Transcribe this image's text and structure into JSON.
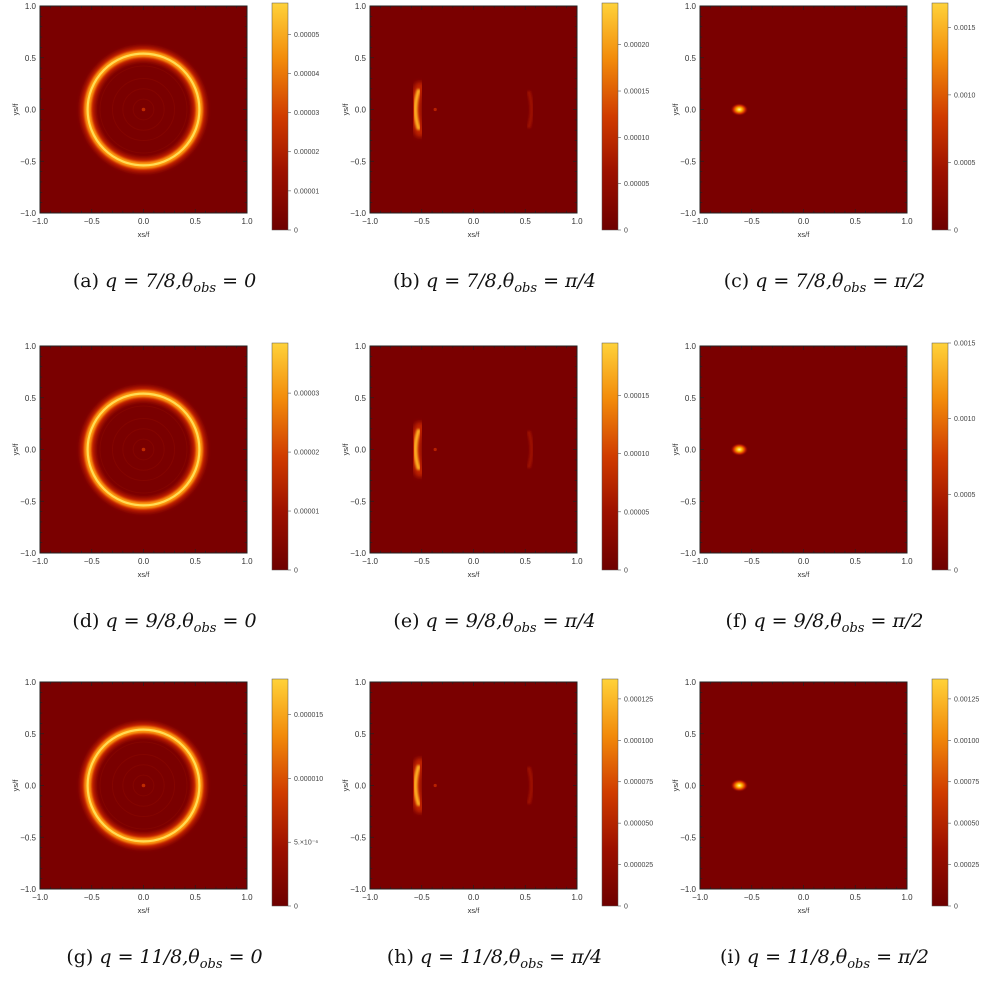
{
  "chart_data": [
    {
      "id": "a",
      "type": "heatmap",
      "caption_label": "(a)",
      "caption_math": "q = 7/8,θ",
      "caption_sub": "obs",
      "caption_rhs": " = 0",
      "pattern": "ring",
      "xlabel": "xs/f",
      "ylabel": "ys/f",
      "xlim": [
        -1,
        1
      ],
      "ylim": [
        -1,
        1
      ],
      "xticks": [
        "−1.0",
        "−0.5",
        "0.0",
        "0.5",
        "1.0"
      ],
      "yticks": [
        "1.0",
        "0.5",
        "0.0",
        "−0.5",
        "−1.0"
      ],
      "colorbar_max": 5.8e-05,
      "colorbar_ticks": [
        {
          "v": 5e-05,
          "t": "0.00005"
        },
        {
          "v": 4e-05,
          "t": "0.00004"
        },
        {
          "v": 3e-05,
          "t": "0.00003"
        },
        {
          "v": 2e-05,
          "t": "0.00002"
        },
        {
          "v": 1e-05,
          "t": "0.00001"
        },
        {
          "v": 0,
          "t": "0"
        }
      ]
    },
    {
      "id": "b",
      "type": "heatmap",
      "caption_label": "(b)",
      "caption_math": "q = 7/8,θ",
      "caption_sub": "obs",
      "caption_rhs": " = π/4",
      "pattern": "arc",
      "xlabel": "xs/f",
      "ylabel": "ys/f",
      "xlim": [
        -1,
        1
      ],
      "ylim": [
        -1,
        1
      ],
      "xticks": [
        "−1.0",
        "−0.5",
        "0.0",
        "0.5",
        "1.0"
      ],
      "yticks": [
        "1.0",
        "0.5",
        "0.0",
        "−0.5",
        "−1.0"
      ],
      "colorbar_max": 0.000245,
      "colorbar_ticks": [
        {
          "v": 0.0002,
          "t": "0.00020"
        },
        {
          "v": 0.00015,
          "t": "0.00015"
        },
        {
          "v": 0.0001,
          "t": "0.00010"
        },
        {
          "v": 5e-05,
          "t": "0.00005"
        },
        {
          "v": 0,
          "t": "0"
        }
      ]
    },
    {
      "id": "c",
      "type": "heatmap",
      "caption_label": "(c)",
      "caption_math": "q = 7/8,θ",
      "caption_sub": "obs",
      "caption_rhs": " = π/2",
      "pattern": "spot",
      "xlabel": "xs/f",
      "ylabel": "ys/f",
      "xlim": [
        -1,
        1
      ],
      "ylim": [
        -1,
        1
      ],
      "xticks": [
        "−1.0",
        "−0.5",
        "0.0",
        "0.5",
        "1.0"
      ],
      "yticks": [
        "1.0",
        "0.5",
        "0.0",
        "−0.5",
        "−1.0"
      ],
      "colorbar_max": 0.00168,
      "colorbar_ticks": [
        {
          "v": 0.0015,
          "t": "0.0015"
        },
        {
          "v": 0.001,
          "t": "0.0010"
        },
        {
          "v": 0.0005,
          "t": "0.0005"
        },
        {
          "v": 0,
          "t": "0"
        }
      ]
    },
    {
      "id": "d",
      "type": "heatmap",
      "caption_label": "(d)",
      "caption_math": "q = 9/8,θ",
      "caption_sub": "obs",
      "caption_rhs": " = 0",
      "pattern": "ring",
      "xlabel": "xs/f",
      "ylabel": "ys/f",
      "xlim": [
        -1,
        1
      ],
      "ylim": [
        -1,
        1
      ],
      "xticks": [
        "−1.0",
        "−0.5",
        "0.0",
        "0.5",
        "1.0"
      ],
      "yticks": [
        "1.0",
        "0.5",
        "0.0",
        "−0.5",
        "−1.0"
      ],
      "colorbar_max": 3.85e-05,
      "colorbar_ticks": [
        {
          "v": 3e-05,
          "t": "0.00003"
        },
        {
          "v": 2e-05,
          "t": "0.00002"
        },
        {
          "v": 1e-05,
          "t": "0.00001"
        },
        {
          "v": 0,
          "t": "0"
        }
      ]
    },
    {
      "id": "e",
      "type": "heatmap",
      "caption_label": "(e)",
      "caption_math": "q = 9/8,θ",
      "caption_sub": "obs",
      "caption_rhs": " = π/4",
      "pattern": "arc",
      "xlabel": "xs/f",
      "ylabel": "ys/f",
      "xlim": [
        -1,
        1
      ],
      "ylim": [
        -1,
        1
      ],
      "xticks": [
        "−1.0",
        "−0.5",
        "0.0",
        "0.5",
        "1.0"
      ],
      "yticks": [
        "1.0",
        "0.5",
        "0.0",
        "−0.5",
        "−1.0"
      ],
      "colorbar_max": 0.000195,
      "colorbar_ticks": [
        {
          "v": 0.00015,
          "t": "0.00015"
        },
        {
          "v": 0.0001,
          "t": "0.00010"
        },
        {
          "v": 5e-05,
          "t": "0.00005"
        },
        {
          "v": 0,
          "t": "0"
        }
      ]
    },
    {
      "id": "f",
      "type": "heatmap",
      "caption_label": "(f)",
      "caption_math": "q = 9/8,θ",
      "caption_sub": "obs",
      "caption_rhs": " = π/2",
      "pattern": "spot",
      "xlabel": "xs/f",
      "ylabel": "ys/f",
      "xlim": [
        -1,
        1
      ],
      "ylim": [
        -1,
        1
      ],
      "xticks": [
        "−1.0",
        "−0.5",
        "0.0",
        "0.5",
        "1.0"
      ],
      "yticks": [
        "1.0",
        "0.5",
        "0.0",
        "−0.5",
        "−1.0"
      ],
      "colorbar_max": 0.0015,
      "colorbar_ticks": [
        {
          "v": 0.0015,
          "t": "0.0015"
        },
        {
          "v": 0.001,
          "t": "0.0010"
        },
        {
          "v": 0.0005,
          "t": "0.0005"
        },
        {
          "v": 0,
          "t": "0"
        }
      ]
    },
    {
      "id": "g",
      "type": "heatmap",
      "caption_label": "(g)",
      "caption_math": "q = 11/8,θ",
      "caption_sub": "obs",
      "caption_rhs": " = 0",
      "pattern": "ring",
      "xlabel": "xs/f",
      "ylabel": "ys/f",
      "xlim": [
        -1,
        1
      ],
      "ylim": [
        -1,
        1
      ],
      "xticks": [
        "−1.0",
        "−0.5",
        "0.0",
        "0.5",
        "1.0"
      ],
      "yticks": [
        "1.0",
        "0.5",
        "0.0",
        "−0.5",
        "−1.0"
      ],
      "colorbar_max": 1.78e-05,
      "colorbar_ticks": [
        {
          "v": 1.5e-05,
          "t": "0.000015"
        },
        {
          "v": 1e-05,
          "t": "0.000010"
        },
        {
          "v": 5e-06,
          "t": "5.×10⁻⁶"
        },
        {
          "v": 0,
          "t": "0"
        }
      ]
    },
    {
      "id": "h",
      "type": "heatmap",
      "caption_label": "(h)",
      "caption_math": "q = 11/8,θ",
      "caption_sub": "obs",
      "caption_rhs": " = π/4",
      "pattern": "arc",
      "xlabel": "xs/f",
      "ylabel": "ys/f",
      "xlim": [
        -1,
        1
      ],
      "ylim": [
        -1,
        1
      ],
      "xticks": [
        "−1.0",
        "−0.5",
        "0.0",
        "0.5",
        "1.0"
      ],
      "yticks": [
        "1.0",
        "0.5",
        "0.0",
        "−0.5",
        "−1.0"
      ],
      "colorbar_max": 0.000137,
      "colorbar_ticks": [
        {
          "v": 0.000125,
          "t": "0.000125"
        },
        {
          "v": 0.0001,
          "t": "0.000100"
        },
        {
          "v": 7.5e-05,
          "t": "0.000075"
        },
        {
          "v": 5e-05,
          "t": "0.000050"
        },
        {
          "v": 2.5e-05,
          "t": "0.000025"
        },
        {
          "v": 0,
          "t": "0"
        }
      ]
    },
    {
      "id": "i",
      "type": "heatmap",
      "caption_label": "(i)",
      "caption_math": "q = 11/8,θ",
      "caption_sub": "obs",
      "caption_rhs": " = π/2",
      "pattern": "spot",
      "xlabel": "xs/f",
      "ylabel": "ys/f",
      "xlim": [
        -1,
        1
      ],
      "ylim": [
        -1,
        1
      ],
      "xticks": [
        "−1.0",
        "−0.5",
        "0.0",
        "0.5",
        "1.0"
      ],
      "yticks": [
        "1.0",
        "0.5",
        "0.0",
        "−0.5",
        "−1.0"
      ],
      "colorbar_max": 0.00137,
      "colorbar_ticks": [
        {
          "v": 0.00125,
          "t": "0.00125"
        },
        {
          "v": 0.001,
          "t": "0.00100"
        },
        {
          "v": 0.00075,
          "t": "0.00075"
        },
        {
          "v": 0.0005,
          "t": "0.00050"
        },
        {
          "v": 0.00025,
          "t": "0.00025"
        },
        {
          "v": 0,
          "t": "0"
        }
      ]
    }
  ]
}
